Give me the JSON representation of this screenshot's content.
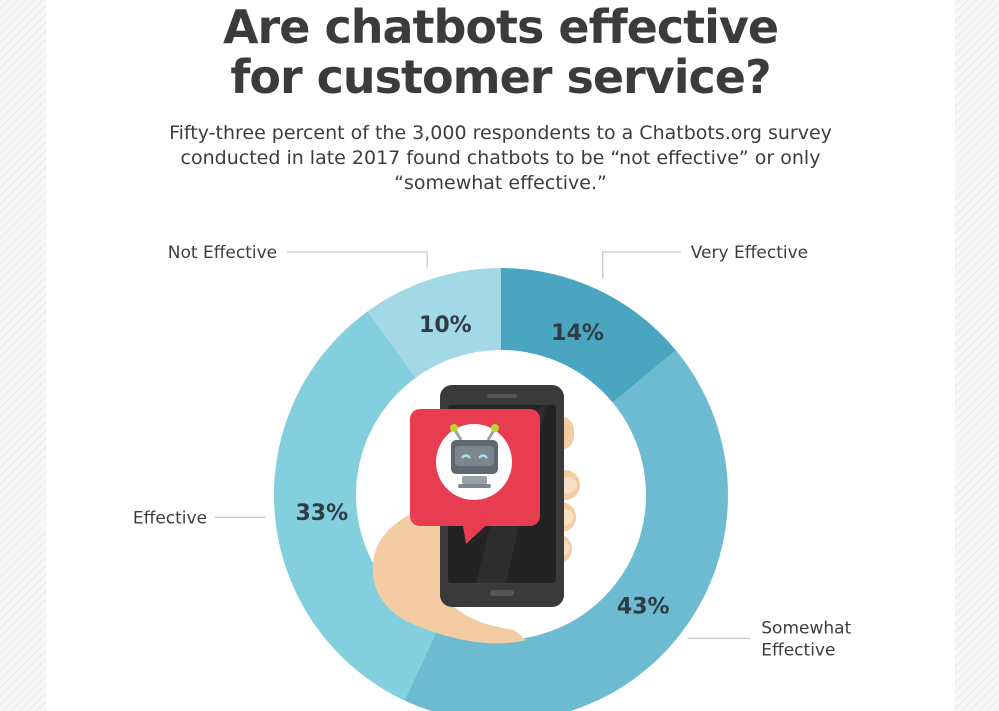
{
  "title": {
    "line1": "Are chatbots effective",
    "line2": "for customer service?"
  },
  "subtitle": {
    "line1": "Fifty-three percent of the 3,000 respondents to a Chatbots.org survey",
    "line2": "conducted in late 2017 found chatbots to be “not effective” or only",
    "line3": "“somewhat effective.”"
  },
  "colors": {
    "not_effective": "#a3d9e6",
    "very_effective": "#4aa5c0",
    "somewhat_effective": "#6cbbd0",
    "effective": "#83cfdd",
    "speech_bubble": "#e83c50",
    "phone": "#3a3a3a",
    "hand": "#f4cca4"
  },
  "icons": [
    "smartphone-icon",
    "chatbot-robot-icon",
    "speech-bubble-icon",
    "hand-icon"
  ],
  "chart_data": {
    "type": "pie",
    "donut": true,
    "categories": [
      "Very Effective",
      "Somewhat Effective",
      "Effective",
      "Not Effective"
    ],
    "values": [
      14,
      43,
      33,
      10
    ],
    "value_labels": [
      "14%",
      "43%",
      "33%",
      "10%"
    ],
    "label_lines": [
      [
        "Very Effective"
      ],
      [
        "Somewhat",
        "Effective"
      ],
      [
        "Effective"
      ],
      [
        "Not Effective"
      ]
    ],
    "colors": [
      "#4aa5c0",
      "#6cbbd0",
      "#83cfdd",
      "#a3d9e6"
    ],
    "legend": "none"
  }
}
